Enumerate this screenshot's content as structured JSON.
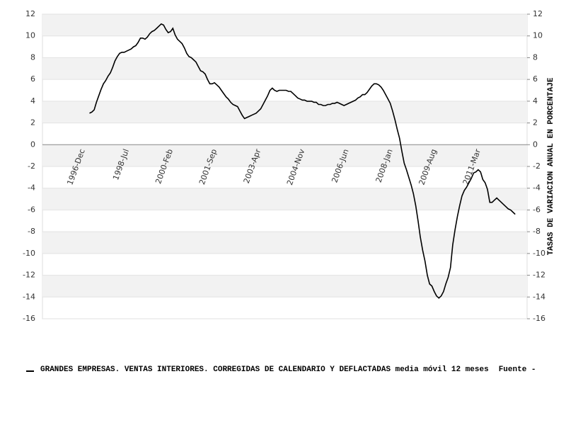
{
  "chart_data": {
    "type": "line",
    "y2label": "TASAS DE VARIACION ANUAL EN PORCENTAJE",
    "source": "Fuente -",
    "categories": [
      "1996-Dec",
      null,
      null,
      null,
      null,
      null,
      null,
      null,
      null,
      null,
      null,
      null,
      null,
      null,
      null,
      null,
      null,
      null,
      null,
      "1998-Jul",
      null,
      null,
      null,
      null,
      null,
      null,
      null,
      null,
      null,
      null,
      null,
      null,
      null,
      null,
      null,
      null,
      null,
      null,
      "2000-Feb",
      null,
      null,
      null,
      null,
      null,
      null,
      null,
      null,
      null,
      null,
      null,
      null,
      null,
      null,
      null,
      null,
      null,
      null,
      "2001-Sep",
      null,
      null,
      null,
      null,
      null,
      null,
      null,
      null,
      null,
      null,
      null,
      null,
      null,
      null,
      null,
      null,
      null,
      null,
      "2003-Apr",
      null,
      null,
      null,
      null,
      null,
      null,
      null,
      null,
      null,
      null,
      null,
      null,
      null,
      null,
      null,
      null,
      null,
      null,
      "2004-Nov",
      null,
      null,
      null,
      null,
      null,
      null,
      null,
      null,
      null,
      null,
      null,
      null,
      null,
      null,
      null,
      null,
      null,
      null,
      "2006-Jun",
      null,
      null,
      null,
      null,
      null,
      null,
      null,
      null,
      null,
      null,
      null,
      null,
      null,
      null,
      null,
      null,
      null,
      null,
      "2008-Jan",
      null,
      null,
      null,
      null,
      null,
      null,
      null,
      null,
      null,
      null,
      null,
      null,
      null,
      null,
      null,
      null,
      null,
      null,
      "2009-Aug",
      null,
      null,
      null,
      null,
      null,
      null,
      null,
      null,
      null,
      null,
      null,
      null,
      null,
      null,
      null,
      null,
      null,
      null,
      "2011-Mar",
      null,
      null,
      null,
      null,
      null,
      null,
      null,
      null,
      null,
      null,
      null,
      null,
      null,
      null,
      null
    ],
    "series": [
      {
        "name": "GRANDES EMPRESAS. VENTAS INTERIORES. CORREGIDAS DE CALENDARIO Y DEFLACTADAS media móvil 12 meses",
        "color": "#000000",
        "values": [
          null,
          null,
          2.9,
          3.0,
          3.2,
          3.9,
          4.5,
          5.1,
          5.6,
          5.9,
          6.3,
          6.6,
          7.1,
          7.7,
          8.1,
          8.4,
          8.5,
          8.5,
          8.6,
          8.7,
          8.8,
          9.0,
          9.1,
          9.4,
          9.8,
          9.8,
          9.7,
          9.9,
          10.2,
          10.4,
          10.5,
          10.7,
          10.9,
          11.1,
          11.0,
          10.6,
          10.3,
          10.4,
          10.7,
          10.1,
          9.7,
          9.5,
          9.3,
          8.9,
          8.4,
          8.1,
          8.0,
          7.8,
          7.6,
          7.2,
          6.8,
          6.7,
          6.5,
          6.0,
          5.6,
          5.6,
          5.7,
          5.5,
          5.3,
          5.0,
          4.7,
          4.4,
          4.2,
          3.9,
          3.7,
          3.6,
          3.5,
          3.1,
          2.7,
          2.4,
          2.5,
          2.6,
          2.7,
          2.8,
          2.9,
          3.1,
          3.3,
          3.7,
          4.1,
          4.5,
          5.0,
          5.2,
          5.0,
          4.9,
          5.0,
          5.0,
          5.0,
          5.0,
          4.9,
          4.9,
          4.7,
          4.5,
          4.3,
          4.2,
          4.1,
          4.1,
          4.0,
          4.0,
          4.0,
          3.9,
          3.9,
          3.7,
          3.7,
          3.6,
          3.6,
          3.7,
          3.7,
          3.8,
          3.8,
          3.9,
          3.8,
          3.7,
          3.6,
          3.7,
          3.8,
          3.9,
          4.0,
          4.1,
          4.3,
          4.4,
          4.6,
          4.6,
          4.8,
          5.1,
          5.4,
          5.6,
          5.6,
          5.5,
          5.3,
          5.0,
          4.6,
          4.2,
          3.8,
          3.1,
          2.3,
          1.4,
          0.6,
          -0.6,
          -1.7,
          -2.3,
          -3.0,
          -3.7,
          -4.5,
          -5.6,
          -7.0,
          -8.5,
          -9.7,
          -10.7,
          -12.0,
          -12.8,
          -13.0,
          -13.5,
          -13.9,
          -14.1,
          -13.9,
          -13.5,
          -12.8,
          -12.2,
          -11.3,
          -9.2,
          -7.8,
          -6.6,
          -5.6,
          -4.7,
          -4.2,
          -3.9,
          -3.5,
          -3.1,
          -2.6,
          -2.5,
          -2.3,
          -2.5,
          -3.2,
          -3.5,
          -4.1,
          -5.3,
          -5.3,
          -5.1,
          -4.9,
          -5.1,
          -5.3,
          -5.5,
          -5.7,
          -5.9,
          -6.0,
          -6.2,
          -6.4
        ]
      }
    ],
    "ylim": [
      -16,
      12
    ],
    "yticks": [
      -16,
      -14,
      -12,
      -10,
      -8,
      -6,
      -4,
      -2,
      0,
      2,
      4,
      6,
      8,
      10,
      12
    ],
    "y2lim": [
      -16,
      12
    ],
    "y2ticks": [
      -16,
      -14,
      -12,
      -10,
      -8,
      -6,
      -4,
      -2,
      0,
      2,
      4,
      6,
      8,
      10,
      12
    ],
    "grid": true,
    "bands": true
  }
}
